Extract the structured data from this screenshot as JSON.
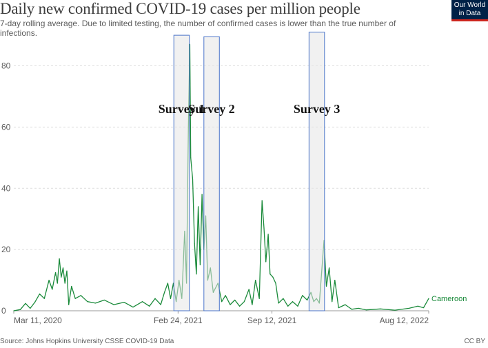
{
  "title": "Daily new confirmed COVID-19 cases per million people",
  "subtitle": "7-day rolling average. Due to limited testing, the number of confirmed cases is lower than the true number of infections.",
  "logo": {
    "line1": "Our World",
    "line2": "in Data"
  },
  "source": "Source: Johns Hopkins University CSSE COVID-19 Data",
  "license": "CC BY",
  "colors": {
    "series": "#1a8a3a",
    "survey_fill": "#e6e6e6",
    "survey_border": "#4a74c9",
    "grid": "#dddddd",
    "text": "#5b5b5b"
  },
  "chart_data": {
    "type": "line",
    "title": "Daily new confirmed COVID-19 cases per million people",
    "xlabel": "",
    "ylabel": "",
    "xlim": [
      "2020-03-11",
      "2022-08-12"
    ],
    "ylim": [
      0,
      88
    ],
    "y_ticks": [
      0,
      20,
      40,
      60,
      80
    ],
    "x_tick_labels": [
      "Mar 11, 2020",
      "Feb 24, 2021",
      "Sep 12, 2021",
      "Aug 12, 2022"
    ],
    "grid": "horizontal dashed",
    "series": [
      {
        "name": "Cameroon",
        "points": [
          [
            "2020-03-11",
            0
          ],
          [
            "2020-03-25",
            0.4
          ],
          [
            "2020-04-05",
            2.4
          ],
          [
            "2020-04-15",
            0.8
          ],
          [
            "2020-04-25",
            2.8
          ],
          [
            "2020-05-05",
            5.5
          ],
          [
            "2020-05-15",
            4
          ],
          [
            "2020-05-25",
            10
          ],
          [
            "2020-06-01",
            7
          ],
          [
            "2020-06-08",
            12.5
          ],
          [
            "2020-06-12",
            9
          ],
          [
            "2020-06-16",
            17
          ],
          [
            "2020-06-20",
            11
          ],
          [
            "2020-06-24",
            14
          ],
          [
            "2020-06-28",
            9
          ],
          [
            "2020-07-02",
            13
          ],
          [
            "2020-07-06",
            2
          ],
          [
            "2020-07-12",
            8
          ],
          [
            "2020-07-20",
            4
          ],
          [
            "2020-08-01",
            5
          ],
          [
            "2020-08-15",
            3
          ],
          [
            "2020-09-01",
            2.5
          ],
          [
            "2020-09-20",
            3.5
          ],
          [
            "2020-10-10",
            2
          ],
          [
            "2020-11-01",
            2.8
          ],
          [
            "2020-11-20",
            1.2
          ],
          [
            "2020-12-10",
            3
          ],
          [
            "2020-12-25",
            1.5
          ],
          [
            "2021-01-06",
            4
          ],
          [
            "2021-01-18",
            2
          ],
          [
            "2021-01-26",
            6
          ],
          [
            "2021-02-02",
            9
          ],
          [
            "2021-02-08",
            4
          ],
          [
            "2021-02-14",
            9
          ],
          [
            "2021-02-20",
            3
          ],
          [
            "2021-02-26",
            10
          ],
          [
            "2021-03-04",
            4
          ],
          [
            "2021-03-10",
            26
          ],
          [
            "2021-03-14",
            9
          ],
          [
            "2021-03-18",
            60
          ],
          [
            "2021-03-21",
            87
          ],
          [
            "2021-03-23",
            50
          ],
          [
            "2021-03-27",
            43
          ],
          [
            "2021-03-31",
            22
          ],
          [
            "2021-04-04",
            12
          ],
          [
            "2021-04-08",
            34
          ],
          [
            "2021-04-12",
            15
          ],
          [
            "2021-04-16",
            38
          ],
          [
            "2021-04-20",
            20
          ],
          [
            "2021-04-24",
            31
          ],
          [
            "2021-04-28",
            10
          ],
          [
            "2021-05-04",
            14
          ],
          [
            "2021-05-10",
            6
          ],
          [
            "2021-05-20",
            9
          ],
          [
            "2021-05-28",
            3
          ],
          [
            "2021-06-05",
            5
          ],
          [
            "2021-06-15",
            2
          ],
          [
            "2021-06-25",
            3.5
          ],
          [
            "2021-07-05",
            1.5
          ],
          [
            "2021-07-15",
            3
          ],
          [
            "2021-07-25",
            7
          ],
          [
            "2021-08-01",
            2
          ],
          [
            "2021-08-08",
            10
          ],
          [
            "2021-08-16",
            4
          ],
          [
            "2021-08-22",
            36
          ],
          [
            "2021-08-26",
            27
          ],
          [
            "2021-08-30",
            16
          ],
          [
            "2021-09-04",
            25
          ],
          [
            "2021-09-08",
            12
          ],
          [
            "2021-09-14",
            11
          ],
          [
            "2021-09-20",
            9
          ],
          [
            "2021-09-26",
            2.5
          ],
          [
            "2021-10-06",
            4
          ],
          [
            "2021-10-16",
            1.5
          ],
          [
            "2021-10-26",
            3
          ],
          [
            "2021-11-06",
            1.5
          ],
          [
            "2021-11-16",
            5
          ],
          [
            "2021-11-26",
            3.5
          ],
          [
            "2021-12-04",
            6
          ],
          [
            "2021-12-10",
            3
          ],
          [
            "2021-12-16",
            4
          ],
          [
            "2021-12-22",
            2.5
          ],
          [
            "2022-01-01",
            23
          ],
          [
            "2022-01-06",
            8
          ],
          [
            "2022-01-12",
            14
          ],
          [
            "2022-01-18",
            3
          ],
          [
            "2022-01-24",
            10
          ],
          [
            "2022-02-01",
            1
          ],
          [
            "2022-02-15",
            2
          ],
          [
            "2022-03-01",
            0.5
          ],
          [
            "2022-03-15",
            0.8
          ],
          [
            "2022-04-01",
            0.3
          ],
          [
            "2022-05-01",
            0.6
          ],
          [
            "2022-06-01",
            0.2
          ],
          [
            "2022-07-01",
            0.8
          ],
          [
            "2022-07-20",
            1.5
          ],
          [
            "2022-08-01",
            1
          ],
          [
            "2022-08-12",
            4
          ]
        ]
      }
    ],
    "annotations": [
      {
        "label": "Survey 1",
        "start": "2021-02-15",
        "end": "2021-03-20",
        "top": 90
      },
      {
        "label": "Survey 2",
        "start": "2021-04-20",
        "end": "2021-05-23",
        "top": 89.5
      },
      {
        "label": "Survey 3",
        "start": "2021-11-30",
        "end": "2022-01-02",
        "top": 91
      }
    ]
  }
}
